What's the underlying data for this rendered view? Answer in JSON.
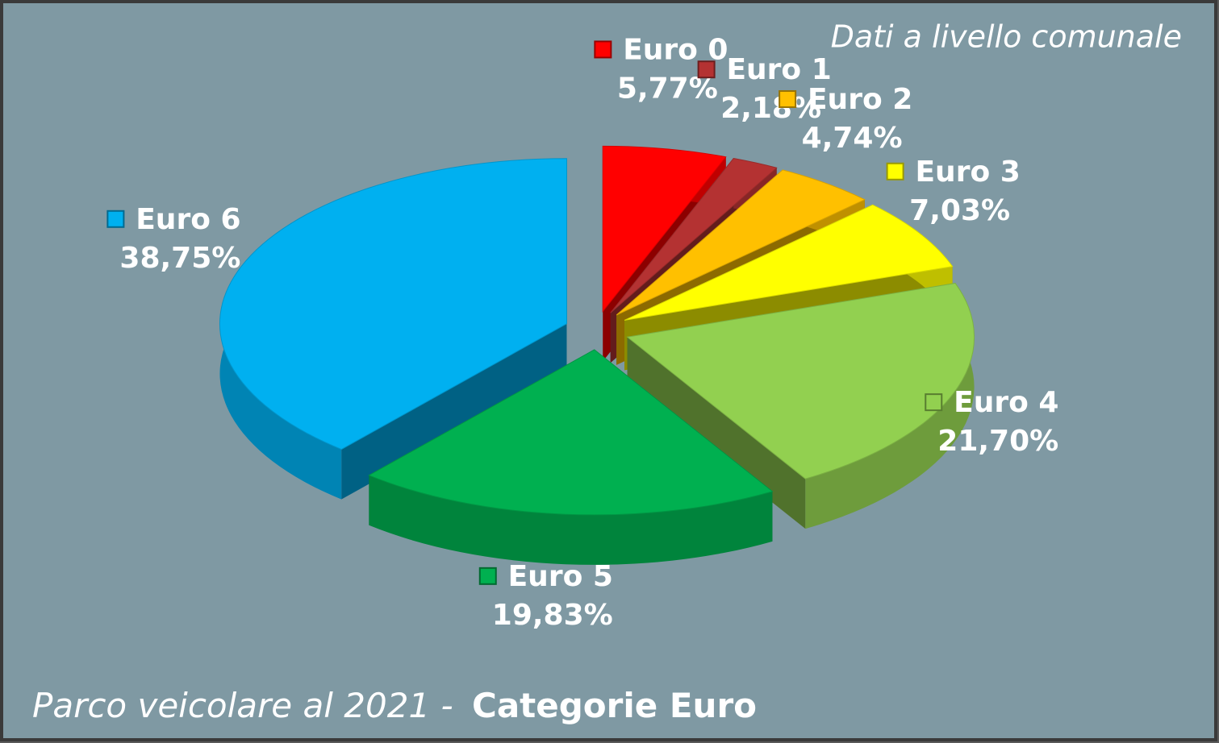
{
  "chart_data": {
    "type": "pie",
    "title": "Parco veicolare al 2021 -",
    "subtitle": "Categorie Euro",
    "note": "Dati a livello comunale",
    "categories": [
      "Euro 0",
      "Euro 1",
      "Euro 2",
      "Euro 3",
      "Euro 4",
      "Euro 5",
      "Euro 6"
    ],
    "values": [
      5.77,
      2.18,
      4.74,
      7.03,
      21.7,
      19.83,
      38.75
    ],
    "value_labels": [
      "5,77%",
      "2,18%",
      "4,74%",
      "7,03%",
      "21,70%",
      "19,83%",
      "38,75%"
    ],
    "colors": [
      "#ff0000",
      "#b43232",
      "#ffc000",
      "#ffff00",
      "#92d050",
      "#00b050",
      "#00b0f0"
    ]
  }
}
